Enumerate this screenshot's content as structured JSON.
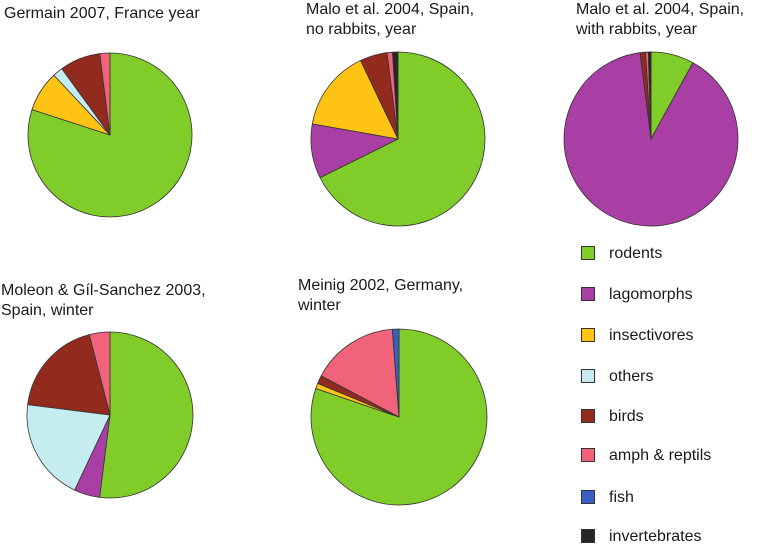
{
  "chart_data": [
    {
      "type": "pie",
      "title": "Germain 2007, France year",
      "series": [
        {
          "values": [
            80,
            8,
            2,
            8,
            2,
            0,
            0
          ]
        }
      ],
      "categories": [
        "rodents",
        "insectivores",
        "others",
        "birds",
        "amph & reptils",
        "fish",
        "invertebrates"
      ]
    },
    {
      "type": "pie",
      "title": "Malo et al. 2004, Spain,\nno rabbits, year",
      "series": [
        {
          "values": [
            67,
            10,
            15,
            5,
            1,
            0,
            1
          ]
        }
      ],
      "categories": [
        "rodents",
        "lagomorphs",
        "insectivores",
        "birds",
        "amph & reptils",
        "fish",
        "invertebrates"
      ]
    },
    {
      "type": "pie",
      "title": "Malo et al. 2004, Spain,\nwith rabbits, year",
      "series": [
        {
          "values": [
            8,
            90,
            1,
            0.5,
            0.5
          ]
        }
      ],
      "categories": [
        "rodents",
        "lagomorphs",
        "birds",
        "amph & reptils",
        "invertebrates"
      ]
    },
    {
      "type": "pie",
      "title": "Moleon & Gíl-Sanchez 2003,\nSpain, winter",
      "series": [
        {
          "values": [
            52,
            5,
            20,
            19,
            4
          ]
        }
      ],
      "categories": [
        "rodents",
        "lagomorphs",
        "others",
        "birds",
        "amph & reptils"
      ]
    },
    {
      "type": "pie",
      "title": "Meinig 2002, Germany,\nwinter",
      "series": [
        {
          "values": [
            80,
            1,
            1.5,
            16,
            1.2
          ]
        }
      ],
      "categories": [
        "rodents",
        "insectivores",
        "birds",
        "amph & reptils",
        "fish"
      ]
    }
  ],
  "legend": [
    {
      "label": "rodents",
      "color": "#80cc28"
    },
    {
      "label": "lagomorphs",
      "color": "#a93ea5"
    },
    {
      "label": "insectivores",
      "color": "#ffc313"
    },
    {
      "label": "others",
      "color": "#c5ecf0"
    },
    {
      "label": "birds",
      "color": "#922a1e"
    },
    {
      "label": "amph & reptils",
      "color": "#f1637b"
    },
    {
      "label": "fish",
      "color": "#3a5ec2"
    },
    {
      "label": "invertebrates",
      "color": "#262626"
    }
  ]
}
